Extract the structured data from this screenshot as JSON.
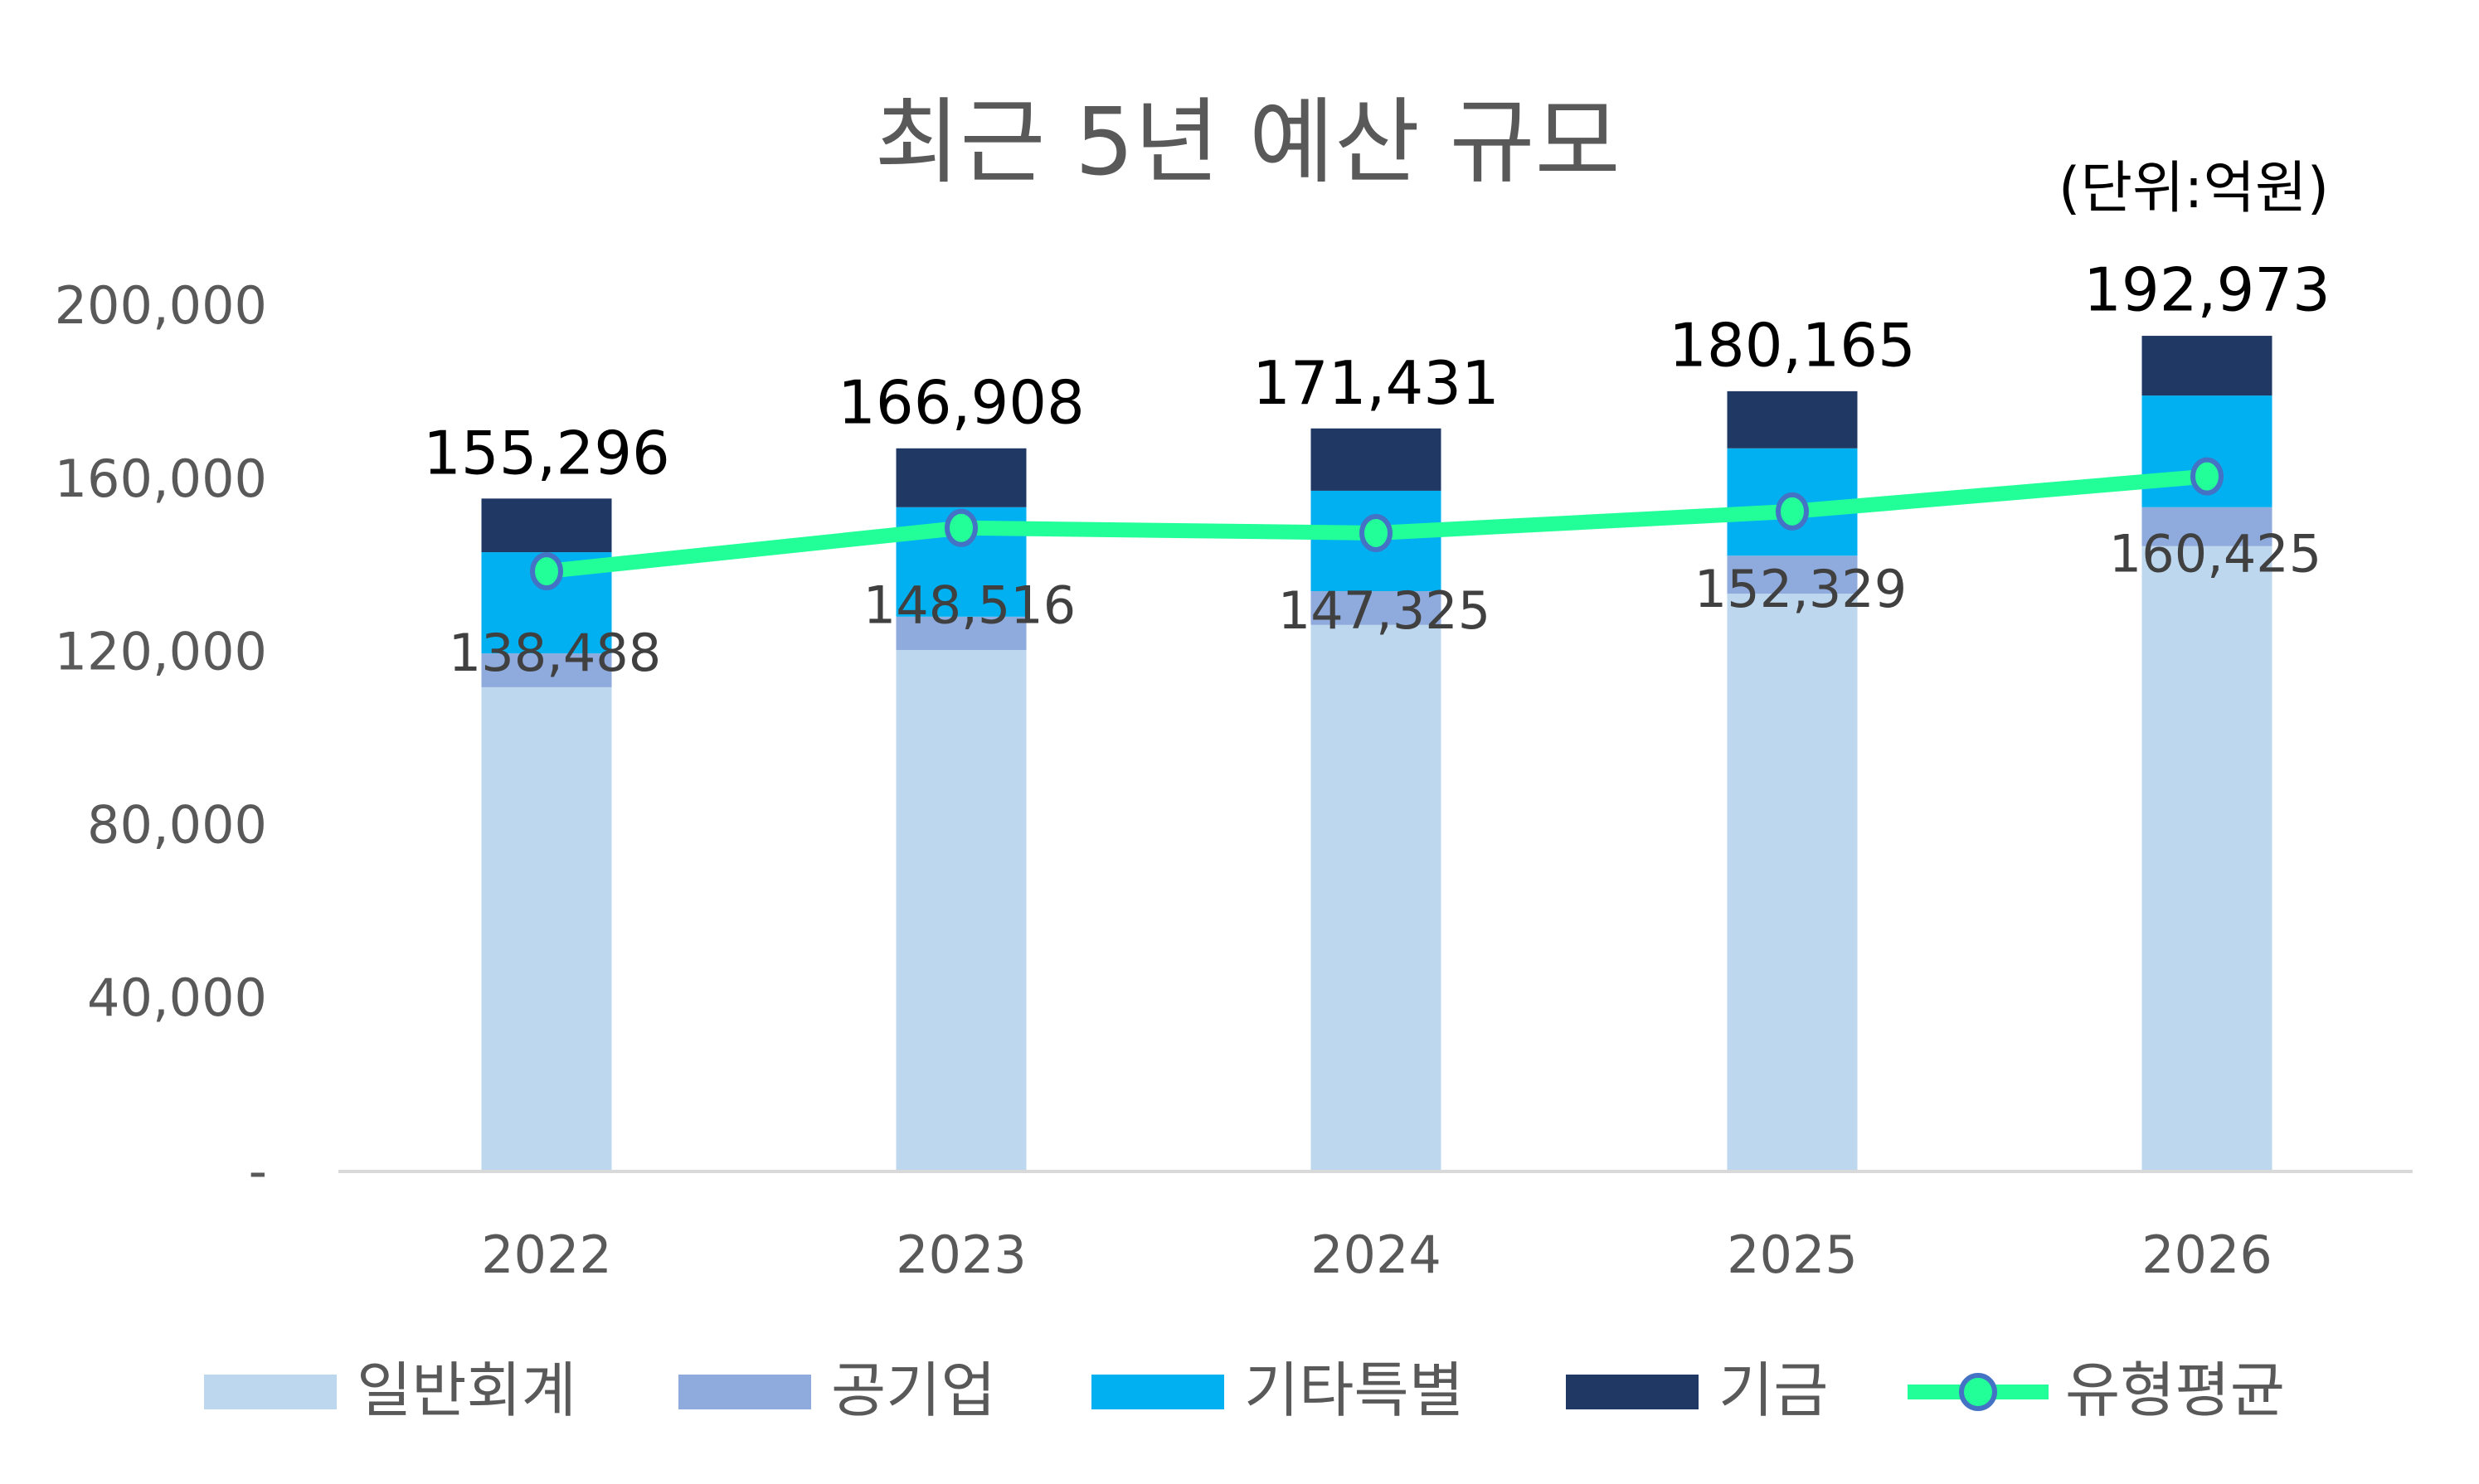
{
  "chart_data": {
    "type": "bar",
    "stacked": true,
    "title": "최근 5년 예산 규모",
    "unit_note": "(단위:억원)",
    "categories": [
      "2022",
      "2023",
      "2024",
      "2025",
      "2026"
    ],
    "ylim": [
      0,
      200000
    ],
    "yticks": [
      0,
      40000,
      80000,
      120000,
      160000,
      200000
    ],
    "ytick_labels": [
      "-",
      "40,000",
      "80,000",
      "120,000",
      "160,000",
      "200,000"
    ],
    "grid": false,
    "legend_position": "bottom",
    "series": [
      {
        "name": "일반회계",
        "color": "#BDD7EE",
        "values": [
          111700,
          120300,
          126100,
          133300,
          144300
        ]
      },
      {
        "name": "공기업",
        "color": "#8FAADC",
        "values": [
          7800,
          7700,
          7800,
          8800,
          9000
        ]
      },
      {
        "name": "기타특별",
        "color": "#00B0F0",
        "values": [
          23400,
          25300,
          23200,
          24800,
          25800
        ]
      },
      {
        "name": "기금",
        "color": "#203864",
        "values": [
          12400,
          13600,
          14400,
          13200,
          13800
        ]
      }
    ],
    "totals": [
      155296,
      166908,
      171431,
      180165,
      192973
    ],
    "total_labels": [
      "155,296",
      "166,908",
      "171,431",
      "180,165",
      "192,973"
    ],
    "line_series": {
      "name": "유형평균",
      "type": "line",
      "color": "#22FF99",
      "marker_edge_color": "#4472C4",
      "values": [
        138488,
        148516,
        147325,
        152329,
        160425
      ],
      "labels": [
        "138,488",
        "148,516",
        "147,325",
        "152,329",
        "160,425"
      ]
    }
  }
}
